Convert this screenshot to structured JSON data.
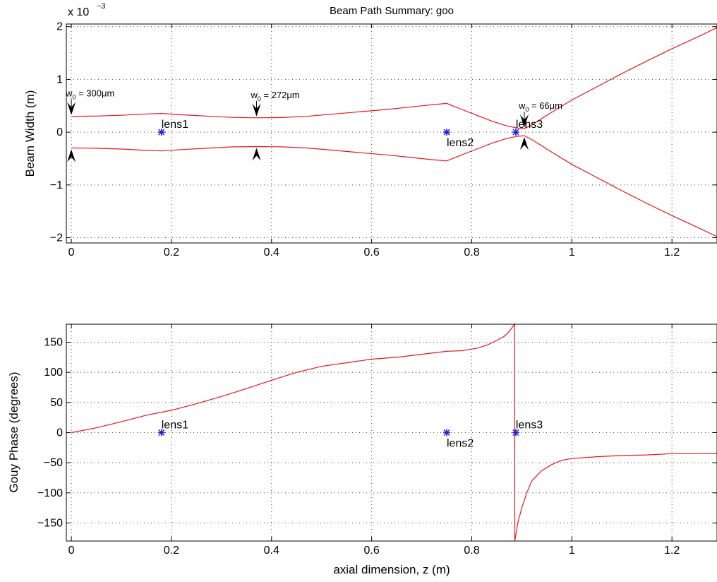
{
  "chart_data": [
    {
      "type": "line",
      "title": "Beam Path Summary: goo",
      "xlabel": "",
      "ylabel": "Beam Width (m)",
      "y_multiplier": "x 10",
      "y_exponent": "−3",
      "xlim": [
        -0.01,
        1.29
      ],
      "ylim": [
        -2.1,
        2.05
      ],
      "xticks": [
        0,
        0.2,
        0.4,
        0.6,
        0.8,
        1,
        1.2
      ],
      "xtick_labels": [
        "0",
        "0.2",
        "0.4",
        "0.6",
        "0.8",
        "1",
        "1.2"
      ],
      "yticks": [
        -2,
        -1,
        0,
        1,
        2
      ],
      "ytick_labels": [
        "−2",
        "−1",
        "0",
        "1",
        "2"
      ],
      "grid": true,
      "line_color": "#e8171d",
      "series": [
        {
          "x": [
            0,
            0.05,
            0.1,
            0.14,
            0.18,
            0.22,
            0.28,
            0.32,
            0.37,
            0.42,
            0.47,
            0.52,
            0.58,
            0.63,
            0.68,
            0.72,
            0.75,
            0.78,
            0.81,
            0.84,
            0.87,
            0.89,
            0.905,
            0.92,
            0.96,
            1.0,
            1.05,
            1.1,
            1.15,
            1.2,
            1.25,
            1.29
          ],
          "y": [
            0.3,
            0.305,
            0.32,
            0.34,
            0.355,
            0.33,
            0.3,
            0.28,
            0.272,
            0.278,
            0.3,
            0.34,
            0.39,
            0.43,
            0.48,
            0.52,
            0.545,
            0.43,
            0.32,
            0.21,
            0.12,
            0.08,
            0.066,
            0.14,
            0.38,
            0.61,
            0.86,
            1.11,
            1.35,
            1.58,
            1.8,
            1.98
          ]
        },
        {
          "x": [
            0,
            0.05,
            0.1,
            0.14,
            0.18,
            0.22,
            0.28,
            0.32,
            0.37,
            0.42,
            0.47,
            0.52,
            0.58,
            0.63,
            0.68,
            0.72,
            0.75,
            0.78,
            0.81,
            0.84,
            0.87,
            0.89,
            0.905,
            0.92,
            0.96,
            1.0,
            1.05,
            1.1,
            1.15,
            1.2,
            1.25,
            1.29
          ],
          "y": [
            -0.3,
            -0.305,
            -0.32,
            -0.34,
            -0.355,
            -0.33,
            -0.3,
            -0.28,
            -0.272,
            -0.278,
            -0.3,
            -0.34,
            -0.39,
            -0.43,
            -0.48,
            -0.52,
            -0.545,
            -0.43,
            -0.32,
            -0.21,
            -0.12,
            -0.08,
            -0.066,
            -0.14,
            -0.38,
            -0.61,
            -0.86,
            -1.11,
            -1.35,
            -1.58,
            -1.8,
            -1.98
          ]
        }
      ],
      "lenses": [
        {
          "name": "lens1",
          "x": 0.18,
          "y": 0,
          "label_pos": "above"
        },
        {
          "name": "lens2",
          "x": 0.75,
          "y": 0,
          "label_pos": "below"
        },
        {
          "name": "lens3",
          "x": 0.888,
          "y": 0,
          "label_pos": "above"
        }
      ],
      "waists": [
        {
          "label": "w",
          "sub": "0",
          "value": " = 300μm",
          "x": 0,
          "w": 0.3
        },
        {
          "label": "w",
          "sub": "0",
          "value": " = 272μm",
          "x": 0.37,
          "w": 0.272
        },
        {
          "label": "w",
          "sub": "0",
          "value": " = 66μm",
          "x": 0.905,
          "w": 0.066
        }
      ]
    },
    {
      "type": "line",
      "title": "",
      "xlabel": "axial dimension, z (m)",
      "ylabel": "Gouy Phase (degrees)",
      "xlim": [
        -0.01,
        1.29
      ],
      "ylim": [
        -180,
        180
      ],
      "xticks": [
        0,
        0.2,
        0.4,
        0.6,
        0.8,
        1,
        1.2
      ],
      "xtick_labels": [
        "0",
        "0.2",
        "0.4",
        "0.6",
        "0.8",
        "1",
        "1.2"
      ],
      "yticks": [
        -150,
        -100,
        -50,
        0,
        50,
        100,
        150
      ],
      "ytick_labels": [
        "−150",
        "−100",
        "−50",
        "0",
        "50",
        "100",
        "150"
      ],
      "grid": true,
      "line_color": "#e8171d",
      "series": [
        {
          "x": [
            0,
            0.05,
            0.1,
            0.15,
            0.2,
            0.25,
            0.3,
            0.35,
            0.4,
            0.45,
            0.5,
            0.55,
            0.6,
            0.65,
            0.7,
            0.75,
            0.78,
            0.81,
            0.83,
            0.85,
            0.865,
            0.875,
            0.882,
            0.8855,
            0.886,
            0.888,
            0.892,
            0.9,
            0.91,
            0.92,
            0.94,
            0.96,
            0.98,
            1.0,
            1.05,
            1.1,
            1.15,
            1.2,
            1.25,
            1.29
          ],
          "y": [
            0,
            8,
            18,
            29,
            37,
            48,
            60,
            73,
            87,
            100,
            110,
            116,
            122,
            125,
            130,
            135,
            136,
            140,
            145,
            153,
            160,
            168,
            176,
            180,
            -180,
            -170,
            -150,
            -125,
            -100,
            -80,
            -63,
            -53,
            -46,
            -43,
            -40,
            -38,
            -37,
            -35,
            -35,
            -35
          ]
        }
      ],
      "lenses": [
        {
          "name": "lens1",
          "x": 0.18,
          "y": 0,
          "label_pos": "above"
        },
        {
          "name": "lens2",
          "x": 0.75,
          "y": 0,
          "label_pos": "below"
        },
        {
          "name": "lens3",
          "x": 0.888,
          "y": 0,
          "label_pos": "above"
        }
      ]
    }
  ],
  "colors": {
    "line": "#e8171d",
    "marker": "#1a1adb",
    "axis": "#000000"
  }
}
